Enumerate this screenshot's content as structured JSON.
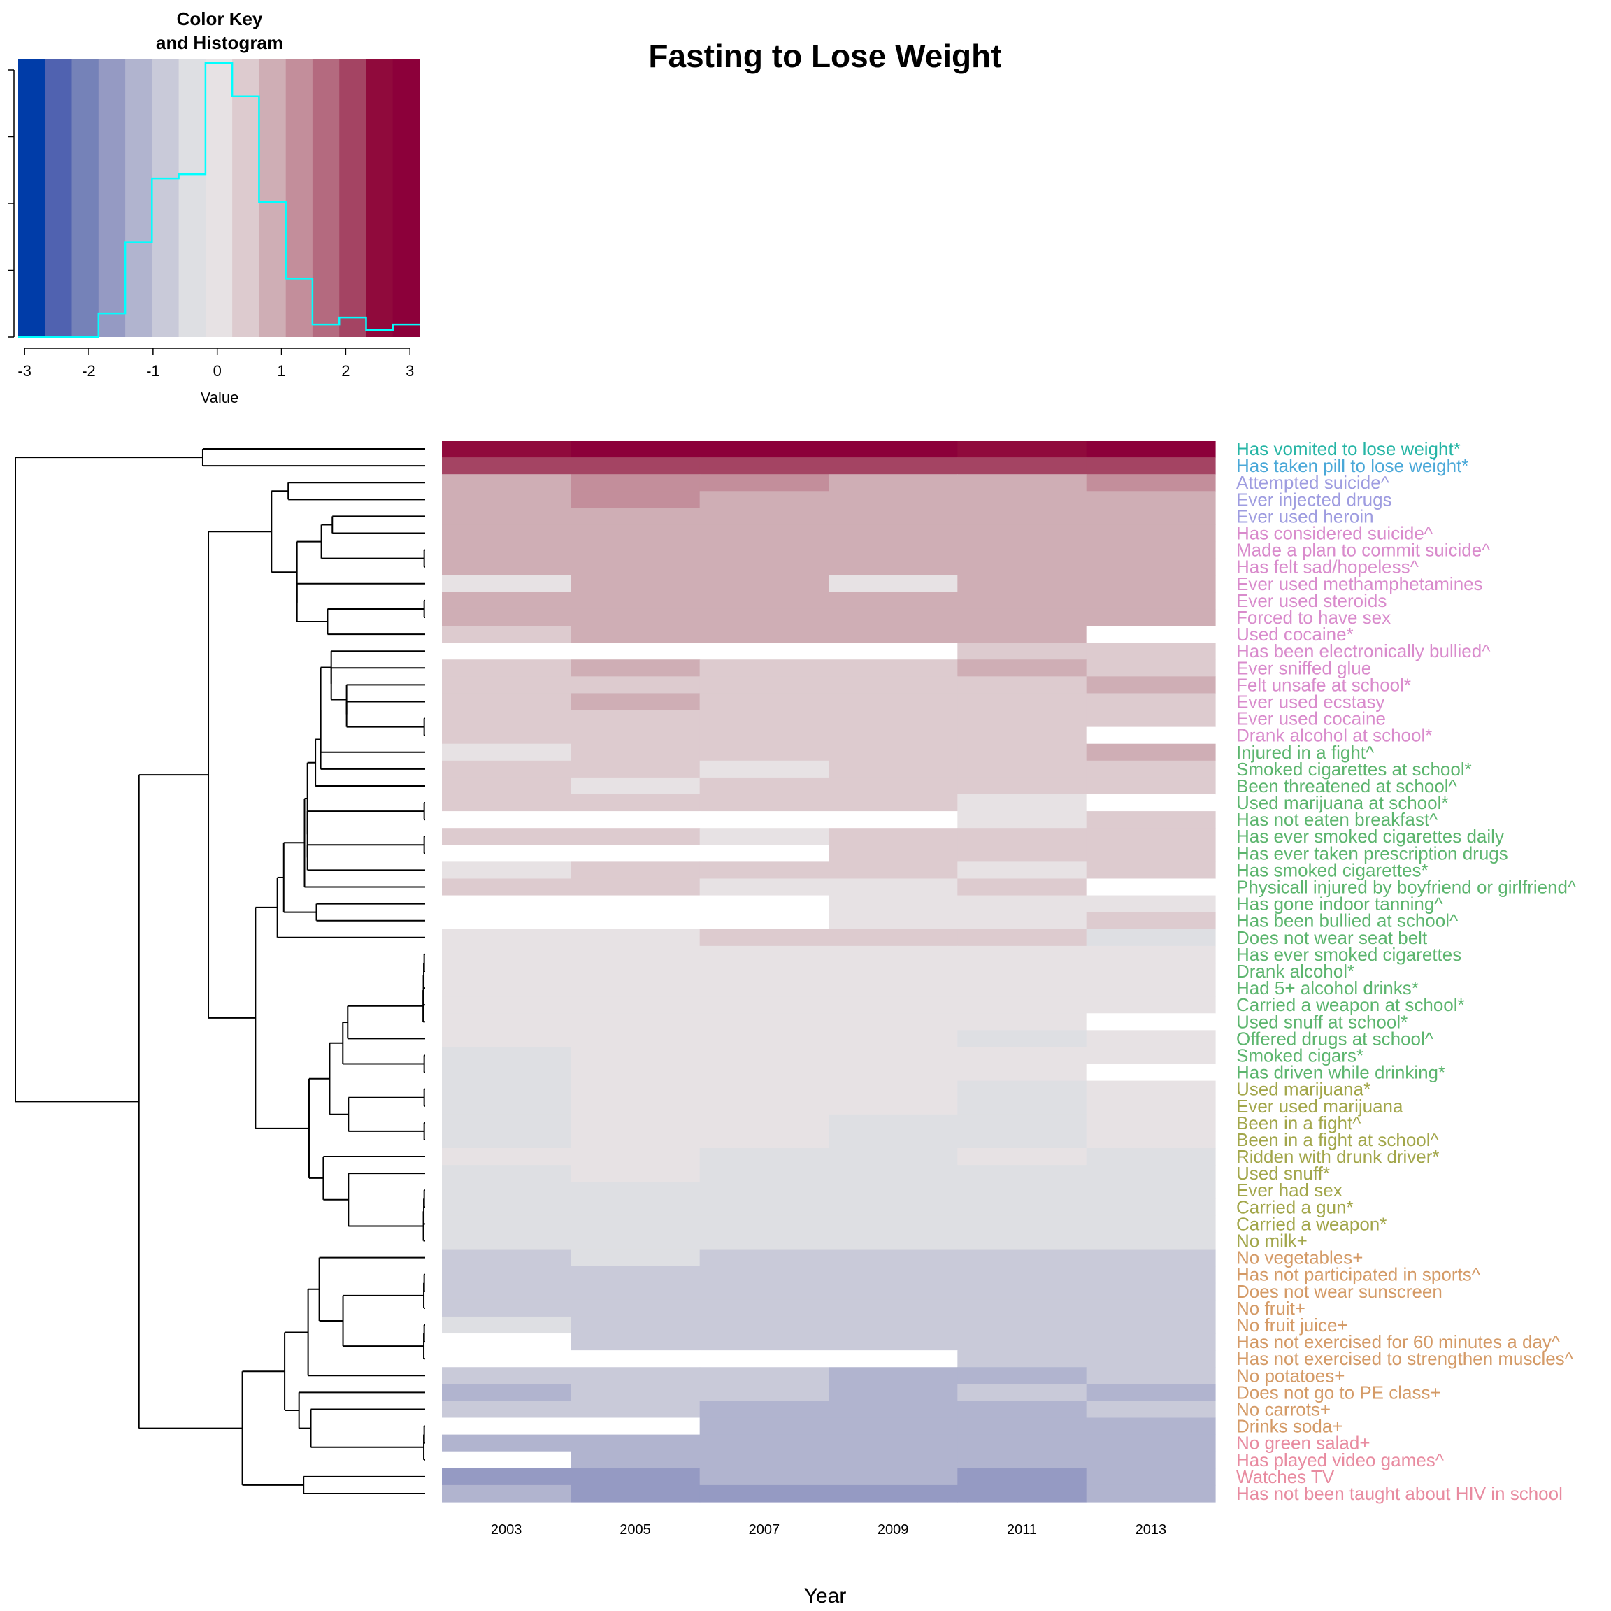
{
  "colors": {
    "background": "#ffffff",
    "histogram_line": "#00ffff",
    "na_cell": "#ffffff",
    "dendrogram": "#000000",
    "axis": "#000000"
  },
  "chart_data": [
    {
      "type": "heatmap",
      "title": "Fasting to Lose Weight",
      "xlabel": "Year",
      "ylabel": "",
      "x_tick_labels": [
        "2003",
        "2005",
        "2007",
        "2009",
        "2011",
        "2013"
      ],
      "color_scale": {
        "breaks": [
          -3.1,
          -2.683,
          -2.267,
          -1.85,
          -1.433,
          -1.017,
          -0.6,
          -0.183,
          0.233,
          0.65,
          1.067,
          1.483,
          1.9,
          2.317,
          2.733,
          3.15
        ],
        "colors": [
          "#003ca8",
          "#5062b0",
          "#7582b8",
          "#959ac3",
          "#b1b4cf",
          "#c9cad9",
          "#dedfe3",
          "#e7e2e4",
          "#ddcbcf",
          "#cfaeb5",
          "#c38e9b",
          "#b46a7f",
          "#a44463",
          "#900a3c",
          "#8c003a"
        ]
      },
      "rows": [
        {
          "label": "Has vomited to lose weight*",
          "group": "teal",
          "values": [
            2.4,
            3.0,
            3.0,
            3.0,
            2.4,
            3.0
          ]
        },
        {
          "label": "Has taken pill to lose weight*",
          "group": "blue",
          "values": [
            2.0,
            2.0,
            2.0,
            2.0,
            2.0,
            2.0
          ]
        },
        {
          "label": "Attempted suicide^",
          "group": "lavender",
          "values": [
            1.0,
            1.4,
            1.4,
            1.0,
            1.0,
            1.4
          ]
        },
        {
          "label": "Ever injected drugs",
          "group": "lavender",
          "values": [
            0.7,
            1.4,
            1.0,
            1.0,
            1.0,
            0.7
          ]
        },
        {
          "label": "Ever used heroin",
          "group": "lavender",
          "values": [
            0.7,
            1.0,
            1.0,
            0.7,
            0.7,
            0.7
          ]
        },
        {
          "label": "Has considered suicide^",
          "group": "pink",
          "values": [
            0.7,
            1.0,
            1.0,
            0.7,
            1.0,
            1.0
          ]
        },
        {
          "label": "Made a plan to commit suicide^",
          "group": "pink",
          "values": [
            0.7,
            0.7,
            0.7,
            0.7,
            0.7,
            1.0
          ]
        },
        {
          "label": "Has felt sad/hopeless^",
          "group": "pink",
          "values": [
            0.7,
            0.7,
            0.7,
            0.7,
            0.7,
            1.0
          ]
        },
        {
          "label": "Ever used methamphetamines",
          "group": "pink",
          "values": [
            0.2,
            1.0,
            0.7,
            0.2,
            0.7,
            0.7
          ]
        },
        {
          "label": "Ever used steroids",
          "group": "pink",
          "values": [
            0.7,
            0.7,
            0.7,
            0.7,
            0.7,
            0.7
          ]
        },
        {
          "label": "Forced to have sex",
          "group": "pink",
          "values": [
            0.7,
            0.7,
            0.7,
            0.7,
            0.7,
            0.7
          ]
        },
        {
          "label": "Used cocaine*",
          "group": "pink",
          "values": [
            0.4,
            0.7,
            1.0,
            0.7,
            0.7,
            null
          ]
        },
        {
          "label": "Has been electronically bullied^",
          "group": "pink",
          "values": [
            null,
            null,
            null,
            null,
            0.4,
            0.4
          ]
        },
        {
          "label": "Ever sniffed glue",
          "group": "pink",
          "values": [
            0.4,
            0.7,
            0.4,
            0.4,
            0.7,
            0.4
          ]
        },
        {
          "label": "Felt unsafe at school*",
          "group": "pink",
          "values": [
            0.4,
            0.4,
            0.4,
            0.4,
            0.4,
            0.7
          ]
        },
        {
          "label": "Ever used ecstasy",
          "group": "pink",
          "values": [
            0.4,
            0.7,
            0.4,
            0.4,
            0.4,
            0.4
          ]
        },
        {
          "label": "Ever used cocaine",
          "group": "pink",
          "values": [
            0.4,
            0.4,
            0.4,
            0.4,
            0.4,
            0.4
          ]
        },
        {
          "label": "Drank alcohol at school*",
          "group": "pink",
          "values": [
            0.4,
            0.4,
            0.4,
            0.4,
            0.4,
            null
          ]
        },
        {
          "label": "Injured in a fight^",
          "group": "green",
          "values": [
            0.0,
            0.4,
            0.4,
            0.4,
            0.4,
            0.7
          ]
        },
        {
          "label": "Smoked cigarettes at school*",
          "group": "green",
          "values": [
            0.4,
            0.4,
            0.0,
            0.4,
            0.4,
            0.4
          ]
        },
        {
          "label": "Been threatened at school^",
          "group": "green",
          "values": [
            0.4,
            0.0,
            0.4,
            0.4,
            0.4,
            0.4
          ]
        },
        {
          "label": "Used marijuana at school*",
          "group": "green",
          "values": [
            0.4,
            0.4,
            0.4,
            0.4,
            0.0,
            null
          ]
        },
        {
          "label": "Has not eaten breakfast^",
          "group": "green",
          "values": [
            null,
            null,
            null,
            null,
            0.0,
            0.4
          ]
        },
        {
          "label": "Has ever smoked cigarettes daily",
          "group": "green",
          "values": [
            0.4,
            0.4,
            0.0,
            0.4,
            0.4,
            0.4
          ]
        },
        {
          "label": "Has ever taken prescription drugs",
          "group": "green",
          "values": [
            null,
            null,
            null,
            0.4,
            0.4,
            0.4
          ]
        },
        {
          "label": "Has smoked cigarettes*",
          "group": "green",
          "values": [
            0.0,
            0.4,
            0.4,
            0.4,
            0.0,
            0.4
          ]
        },
        {
          "label": "Physicall injured by boyfriend or girlfriend^",
          "group": "green",
          "values": [
            0.4,
            0.4,
            0.0,
            0.0,
            0.4,
            null
          ]
        },
        {
          "label": "Has gone indoor tanning^",
          "group": "green",
          "values": [
            null,
            null,
            null,
            0.0,
            0.0,
            0.0
          ]
        },
        {
          "label": "Has been bullied at school^",
          "group": "green",
          "values": [
            null,
            null,
            null,
            0.0,
            0.0,
            0.4
          ]
        },
        {
          "label": "Does not wear seat belt",
          "group": "green",
          "values": [
            0.0,
            0.0,
            0.4,
            0.4,
            0.4,
            -0.3
          ]
        },
        {
          "label": "Has ever smoked cigarettes",
          "group": "green",
          "values": [
            0.0,
            0.0,
            0.0,
            0.0,
            0.0,
            0.0
          ]
        },
        {
          "label": "Drank alcohol*",
          "group": "green",
          "values": [
            0.0,
            0.0,
            0.0,
            0.0,
            0.0,
            0.0
          ]
        },
        {
          "label": "Had 5+ alcohol drinks*",
          "group": "green",
          "values": [
            0.0,
            0.0,
            0.0,
            0.0,
            0.0,
            0.0
          ]
        },
        {
          "label": "Carried a weapon at school*",
          "group": "green",
          "values": [
            0.0,
            0.0,
            0.0,
            0.0,
            0.0,
            0.0
          ]
        },
        {
          "label": "Used snuff at school*",
          "group": "green",
          "values": [
            0.0,
            0.0,
            0.0,
            0.0,
            0.0,
            null
          ]
        },
        {
          "label": "Offered drugs at school^",
          "group": "green",
          "values": [
            0.0,
            0.0,
            0.0,
            0.0,
            -0.3,
            0.0
          ]
        },
        {
          "label": "Smoked cigars*",
          "group": "green",
          "values": [
            -0.3,
            0.0,
            0.0,
            0.0,
            0.0,
            0.0
          ]
        },
        {
          "label": "Has driven while drinking*",
          "group": "green",
          "values": [
            -0.3,
            0.0,
            0.0,
            0.0,
            0.0,
            null
          ]
        },
        {
          "label": "Used marijuana*",
          "group": "olive",
          "values": [
            -0.3,
            0.0,
            0.0,
            0.0,
            -0.3,
            0.0
          ]
        },
        {
          "label": "Ever used marijuana",
          "group": "olive",
          "values": [
            -0.3,
            0.0,
            0.0,
            0.0,
            -0.3,
            0.0
          ]
        },
        {
          "label": "Been in a fight^",
          "group": "olive",
          "values": [
            -0.3,
            0.0,
            0.0,
            -0.3,
            -0.3,
            0.0
          ]
        },
        {
          "label": "Been in a fight at school^",
          "group": "olive",
          "values": [
            -0.3,
            0.0,
            0.0,
            -0.3,
            -0.3,
            0.0
          ]
        },
        {
          "label": "Ridden with drunk driver*",
          "group": "olive",
          "values": [
            0.0,
            0.0,
            -0.3,
            -0.3,
            0.0,
            -0.3
          ]
        },
        {
          "label": "Used snuff*",
          "group": "olive",
          "values": [
            -0.3,
            0.0,
            -0.3,
            -0.3,
            -0.3,
            -0.3
          ]
        },
        {
          "label": "Ever had sex",
          "group": "olive",
          "values": [
            -0.3,
            -0.3,
            -0.3,
            -0.3,
            -0.3,
            -0.3
          ]
        },
        {
          "label": "Carried a gun*",
          "group": "olive",
          "values": [
            -0.3,
            -0.3,
            -0.3,
            -0.3,
            -0.3,
            -0.3
          ]
        },
        {
          "label": "Carried a weapon*",
          "group": "olive",
          "values": [
            -0.3,
            -0.3,
            -0.3,
            -0.3,
            -0.3,
            -0.3
          ]
        },
        {
          "label": "No milk+",
          "group": "olive",
          "values": [
            -0.3,
            -0.3,
            -0.3,
            -0.3,
            -0.3,
            -0.3
          ]
        },
        {
          "label": "No vegetables+",
          "group": "orange",
          "values": [
            -0.8,
            -0.3,
            -0.8,
            -0.8,
            -0.8,
            -0.8
          ]
        },
        {
          "label": "Has not participated in sports^",
          "group": "orange",
          "values": [
            -0.8,
            -0.8,
            -0.8,
            -0.8,
            -0.8,
            -0.8
          ]
        },
        {
          "label": "Does not wear sunscreen",
          "group": "orange",
          "values": [
            -0.8,
            -0.8,
            -0.8,
            -0.8,
            -0.8,
            -0.8
          ]
        },
        {
          "label": "No fruit+",
          "group": "orange",
          "values": [
            -0.8,
            -0.8,
            -0.8,
            -0.8,
            -0.8,
            -0.8
          ]
        },
        {
          "label": "No fruit juice+",
          "group": "orange",
          "values": [
            -0.3,
            -0.8,
            -0.8,
            -0.8,
            -0.8,
            -0.8
          ]
        },
        {
          "label": "Has not exercised for 60 minutes a day^",
          "group": "orange",
          "values": [
            null,
            -0.8,
            -0.8,
            -0.8,
            -0.8,
            -0.8
          ]
        },
        {
          "label": "Has not exercised to strengthen muscles^",
          "group": "orange",
          "values": [
            null,
            null,
            null,
            null,
            -0.8,
            -0.8
          ]
        },
        {
          "label": "No potatoes+",
          "group": "orange",
          "values": [
            -0.8,
            -0.8,
            -0.8,
            -1.2,
            -1.2,
            -0.8
          ]
        },
        {
          "label": "Does not go to PE class+",
          "group": "orange",
          "values": [
            -1.2,
            -0.8,
            -0.8,
            -1.2,
            -0.8,
            -1.2
          ]
        },
        {
          "label": "No carrots+",
          "group": "orange",
          "values": [
            -0.8,
            -0.8,
            -1.2,
            -1.2,
            -1.2,
            -0.8
          ]
        },
        {
          "label": "Drinks soda+",
          "group": "orange",
          "values": [
            null,
            null,
            -1.2,
            -1.2,
            -1.2,
            -1.2
          ]
        },
        {
          "label": "No green salad+",
          "group": "salmon",
          "values": [
            -1.2,
            -1.2,
            -1.2,
            -1.2,
            -1.2,
            -1.2
          ]
        },
        {
          "label": "Has played video games^",
          "group": "salmon",
          "values": [
            null,
            -1.2,
            -1.2,
            -1.2,
            -1.2,
            -1.2
          ]
        },
        {
          "label": "Watches TV",
          "group": "salmon",
          "values": [
            -1.6,
            -1.6,
            -1.2,
            -1.2,
            -1.6,
            -1.2
          ]
        },
        {
          "label": "Has not been taught about HIV in school",
          "group": "salmon",
          "values": [
            -1.2,
            -1.6,
            -1.6,
            -1.6,
            -1.6,
            -1.2
          ]
        }
      ],
      "label_colors": {
        "teal": "#26b5a5",
        "blue": "#4aa8d8",
        "lavender": "#9e9ce0",
        "pink": "#d98bcc",
        "green": "#5cb56e",
        "olive": "#a2a64a",
        "orange": "#d49a66",
        "salmon": "#e88ba0"
      }
    },
    {
      "type": "histogram",
      "title": "Color Key\nand Histogram",
      "title_lines": [
        "Color Key",
        "and Histogram"
      ],
      "xlabel": "Value",
      "ylabel": "",
      "xlim": [
        -3.1,
        3.15
      ],
      "x_ticks": [
        -3,
        -2,
        -1,
        0,
        1,
        2,
        3
      ],
      "x_tick_labels": [
        "-3",
        "-2",
        "-1",
        "0",
        "1",
        "2",
        "3"
      ],
      "y_tick_count": 5,
      "bins": [
        {
          "from": -3.1,
          "to": -2.683,
          "height": 0.0
        },
        {
          "from": -2.683,
          "to": -2.267,
          "height": 0.0
        },
        {
          "from": -2.267,
          "to": -1.85,
          "height": 0.0
        },
        {
          "from": -1.85,
          "to": -1.433,
          "height": 0.085
        },
        {
          "from": -1.433,
          "to": -1.017,
          "height": 0.34
        },
        {
          "from": -1.017,
          "to": -0.6,
          "height": 0.57
        },
        {
          "from": -0.6,
          "to": -0.183,
          "height": 0.585
        },
        {
          "from": -0.183,
          "to": 0.233,
          "height": 0.985
        },
        {
          "from": 0.233,
          "to": 0.65,
          "height": 0.865
        },
        {
          "from": 0.65,
          "to": 1.067,
          "height": 0.485
        },
        {
          "from": 1.067,
          "to": 1.483,
          "height": 0.21
        },
        {
          "from": 1.483,
          "to": 1.9,
          "height": 0.045
        },
        {
          "from": 1.9,
          "to": 2.317,
          "height": 0.07
        },
        {
          "from": 2.317,
          "to": 2.733,
          "height": 0.025
        },
        {
          "from": 2.733,
          "to": 3.15,
          "height": 0.045
        }
      ]
    }
  ]
}
